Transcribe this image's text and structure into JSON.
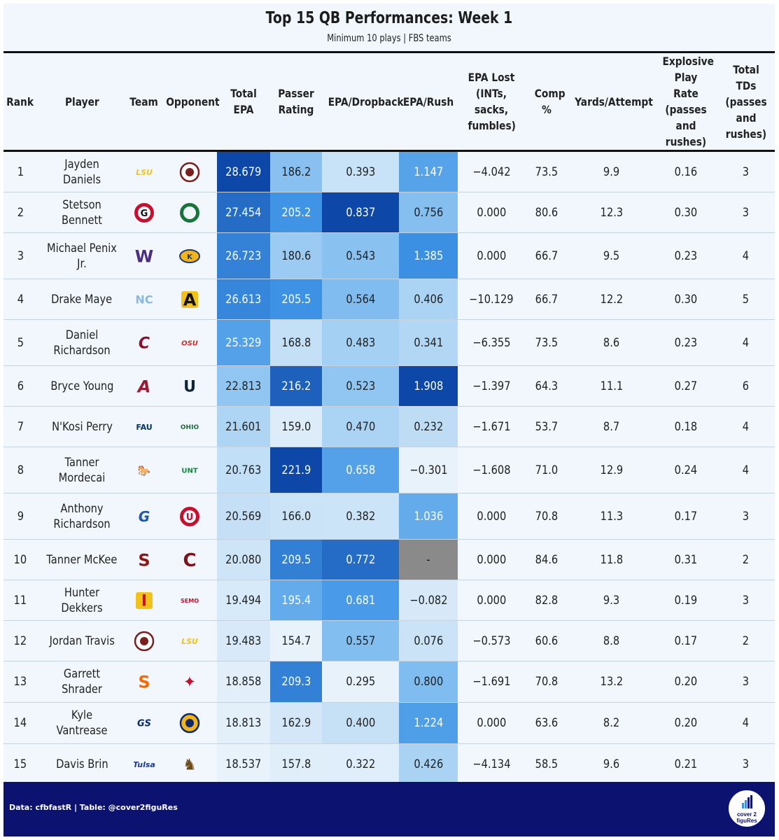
{
  "title": "Top 15 QB Performances: Week 1",
  "subtitle": "Minimum 10 plays | FBS teams",
  "footer": {
    "source": "Data: cfbfastR | Table: @cover2figuRes",
    "badge_line1": "cover 2",
    "badge_line2": "figuRes"
  },
  "columns": {
    "rank": "Rank",
    "player": "Player",
    "team": "Team",
    "opponent": "Opponent",
    "total_epa": "Total EPA",
    "passer_rating": "Passer Rating",
    "epa_dropback": "EPA/Dropback",
    "epa_rush": "EPA/Rush",
    "epa_lost": "EPA Lost (INTs, sacks, fumbles)",
    "comp": "Comp %",
    "ypa": "Yards/Attempt",
    "explosive": "Explosive Play Rate (passes and rushes)",
    "total_tds": "Total TDs (passes and rushes)"
  },
  "chart_data": {
    "type": "table",
    "rows": [
      {
        "rank": "1",
        "player": "Jayden Daniels",
        "team": "LSU",
        "opponent": "Florida State",
        "total_epa": "28.679",
        "passer_rating": "186.2",
        "epa_dropback": "0.393",
        "epa_rush": "1.147",
        "epa_lost": "−4.042",
        "comp": "73.5",
        "ypa": "9.9",
        "explosive": "0.16",
        "tds": "3"
      },
      {
        "rank": "2",
        "player": "Stetson Bennett",
        "team": "Georgia",
        "opponent": "Oregon",
        "total_epa": "27.454",
        "passer_rating": "205.2",
        "epa_dropback": "0.837",
        "epa_rush": "0.756",
        "epa_lost": "0.000",
        "comp": "80.6",
        "ypa": "12.3",
        "explosive": "0.30",
        "tds": "3"
      },
      {
        "rank": "3",
        "player": "Michael Penix Jr.",
        "team": "Washington",
        "opponent": "Kent State",
        "total_epa": "26.723",
        "passer_rating": "180.6",
        "epa_dropback": "0.543",
        "epa_rush": "1.385",
        "epa_lost": "0.000",
        "comp": "66.7",
        "ypa": "9.5",
        "explosive": "0.23",
        "tds": "4"
      },
      {
        "rank": "4",
        "player": "Drake Maye",
        "team": "North Carolina",
        "opponent": "Appalachian State",
        "total_epa": "26.613",
        "passer_rating": "205.5",
        "epa_dropback": "0.564",
        "epa_rush": "0.406",
        "epa_lost": "−10.129",
        "comp": "66.7",
        "ypa": "12.2",
        "explosive": "0.30",
        "tds": "5"
      },
      {
        "rank": "5",
        "player": "Daniel Richardson",
        "team": "Central Michigan",
        "opponent": "Oklahoma State",
        "total_epa": "25.329",
        "passer_rating": "168.8",
        "epa_dropback": "0.483",
        "epa_rush": "0.341",
        "epa_lost": "−6.355",
        "comp": "73.5",
        "ypa": "8.6",
        "explosive": "0.23",
        "tds": "4"
      },
      {
        "rank": "6",
        "player": "Bryce Young",
        "team": "Alabama",
        "opponent": "Utah State",
        "total_epa": "22.813",
        "passer_rating": "216.2",
        "epa_dropback": "0.523",
        "epa_rush": "1.908",
        "epa_lost": "−1.397",
        "comp": "64.3",
        "ypa": "11.1",
        "explosive": "0.27",
        "tds": "6"
      },
      {
        "rank": "7",
        "player": "N'Kosi Perry",
        "team": "Florida Atlantic",
        "opponent": "Ohio",
        "total_epa": "21.601",
        "passer_rating": "159.0",
        "epa_dropback": "0.470",
        "epa_rush": "0.232",
        "epa_lost": "−1.671",
        "comp": "53.7",
        "ypa": "8.7",
        "explosive": "0.18",
        "tds": "4"
      },
      {
        "rank": "8",
        "player": "Tanner Mordecai",
        "team": "SMU",
        "opponent": "North Texas",
        "total_epa": "20.763",
        "passer_rating": "221.9",
        "epa_dropback": "0.658",
        "epa_rush": "−0.301",
        "epa_lost": "−1.608",
        "comp": "71.0",
        "ypa": "12.9",
        "explosive": "0.24",
        "tds": "4"
      },
      {
        "rank": "9",
        "player": "Anthony Richardson",
        "team": "Florida",
        "opponent": "Utah",
        "total_epa": "20.569",
        "passer_rating": "166.0",
        "epa_dropback": "0.382",
        "epa_rush": "1.036",
        "epa_lost": "0.000",
        "comp": "70.8",
        "ypa": "11.3",
        "explosive": "0.17",
        "tds": "3"
      },
      {
        "rank": "10",
        "player": "Tanner McKee",
        "team": "Stanford",
        "opponent": "Colgate",
        "total_epa": "20.080",
        "passer_rating": "209.5",
        "epa_dropback": "0.772",
        "epa_rush": "-",
        "epa_lost": "0.000",
        "comp": "84.6",
        "ypa": "11.8",
        "explosive": "0.31",
        "tds": "2"
      },
      {
        "rank": "11",
        "player": "Hunter Dekkers",
        "team": "Iowa State",
        "opponent": "SE Missouri",
        "total_epa": "19.494",
        "passer_rating": "195.4",
        "epa_dropback": "0.681",
        "epa_rush": "−0.082",
        "epa_lost": "0.000",
        "comp": "82.8",
        "ypa": "9.3",
        "explosive": "0.19",
        "tds": "3"
      },
      {
        "rank": "12",
        "player": "Jordan Travis",
        "team": "Florida State",
        "opponent": "LSU",
        "total_epa": "19.483",
        "passer_rating": "154.7",
        "epa_dropback": "0.557",
        "epa_rush": "0.076",
        "epa_lost": "−0.573",
        "comp": "60.6",
        "ypa": "8.8",
        "explosive": "0.17",
        "tds": "2"
      },
      {
        "rank": "13",
        "player": "Garrett Shrader",
        "team": "Syracuse",
        "opponent": "Louisville",
        "total_epa": "18.858",
        "passer_rating": "209.3",
        "epa_dropback": "0.295",
        "epa_rush": "0.800",
        "epa_lost": "−1.691",
        "comp": "70.8",
        "ypa": "13.2",
        "explosive": "0.20",
        "tds": "3"
      },
      {
        "rank": "14",
        "player": "Kyle Vantrease",
        "team": "Georgia Southern",
        "opponent": "Morgan State",
        "total_epa": "18.813",
        "passer_rating": "162.9",
        "epa_dropback": "0.400",
        "epa_rush": "1.224",
        "epa_lost": "0.000",
        "comp": "63.6",
        "ypa": "8.2",
        "explosive": "0.20",
        "tds": "4"
      },
      {
        "rank": "15",
        "player": "Davis Brin",
        "team": "Tulsa",
        "opponent": "Wyoming",
        "total_epa": "18.537",
        "passer_rating": "157.8",
        "epa_dropback": "0.322",
        "epa_rush": "0.426",
        "epa_lost": "−4.134",
        "comp": "58.5",
        "ypa": "9.6",
        "explosive": "0.21",
        "tds": "3"
      }
    ],
    "color_scale": {
      "low": "#e8f2fb",
      "mid1": "#bcdcf5",
      "mid2": "#7fbcf0",
      "mid3": "#3f94e6",
      "high": "#0d47a8",
      "missing": "#8a8a8a"
    },
    "shaded_columns": [
      "total_epa",
      "passer_rating",
      "epa_dropback",
      "epa_rush"
    ]
  }
}
